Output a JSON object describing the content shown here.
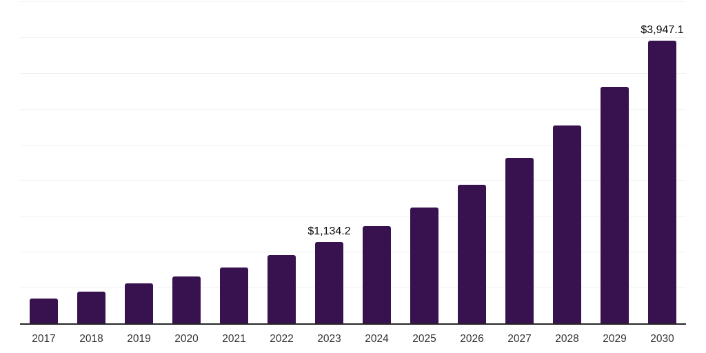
{
  "chart_data": {
    "type": "bar",
    "title": "",
    "xlabel": "",
    "ylabel": "",
    "categories": [
      "2017",
      "2018",
      "2019",
      "2020",
      "2021",
      "2022",
      "2023",
      "2024",
      "2025",
      "2026",
      "2027",
      "2028",
      "2029",
      "2030"
    ],
    "values": [
      350,
      440,
      555,
      660,
      785,
      950,
      1134.2,
      1355,
      1620,
      1935,
      2313,
      2764,
      3303,
      3947.1
    ],
    "data_labels": [
      "",
      "",
      "",
      "",
      "",
      "",
      "$1,134.2",
      "",
      "",
      "",
      "",
      "",
      "",
      "$3,947.1"
    ],
    "ylim": [
      0,
      4500
    ],
    "gridline_step": 500,
    "grid": "horizontal",
    "legend_position": "none",
    "y_axis_tick_labels_visible": false,
    "colors": {
      "bar": "#38124E",
      "gridline": "#F1F1F1",
      "axis_line": "#262626",
      "tick_label": "#333333",
      "data_label": "#0A0A0A",
      "background": "#FFFFFF"
    }
  }
}
